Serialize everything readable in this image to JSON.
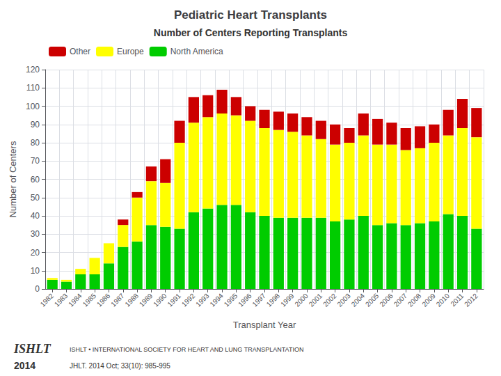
{
  "chart_data": {
    "type": "bar",
    "title": "Pediatric Heart Transplants",
    "subtitle": "Number of Centers Reporting Transplants",
    "xlabel": "Transplant Year",
    "ylabel": "Number of Centers",
    "categories": [
      "1982",
      "1983",
      "1984",
      "1985",
      "1986",
      "1987",
      "1988",
      "1989",
      "1990",
      "1991",
      "1992",
      "1993",
      "1994",
      "1995",
      "1996",
      "1997",
      "1998",
      "1999",
      "2000",
      "2001",
      "2002",
      "2003",
      "2004",
      "2005",
      "2006",
      "2007",
      "2008",
      "2009",
      "2010",
      "2011",
      "2012"
    ],
    "series": [
      {
        "name": "North America",
        "color": "#00cc00",
        "values": [
          5,
          4,
          8,
          8,
          14,
          23,
          26,
          35,
          34,
          33,
          42,
          44,
          46,
          46,
          42,
          40,
          39,
          39,
          39,
          39,
          37,
          38,
          40,
          35,
          36,
          35,
          36,
          37,
          41,
          40,
          33
        ]
      },
      {
        "name": "Europe",
        "color": "#ffff00",
        "values": [
          1,
          1,
          3,
          9,
          11,
          12,
          24,
          24,
          24,
          47,
          49,
          50,
          50,
          49,
          50,
          48,
          48,
          47,
          45,
          43,
          42,
          42,
          44,
          44,
          43,
          41,
          41,
          43,
          43,
          48,
          50
        ]
      },
      {
        "name": "Other",
        "color": "#cc0000",
        "values": [
          0,
          0,
          0,
          0,
          0,
          3,
          3,
          8,
          13,
          12,
          14,
          12,
          13,
          10,
          8,
          10,
          10,
          10,
          10,
          10,
          11,
          8,
          12,
          14,
          12,
          12,
          12,
          10,
          14,
          16,
          16
        ]
      }
    ],
    "stacked": true,
    "ylim": [
      0,
      120
    ],
    "yticks": [
      0,
      10,
      20,
      30,
      40,
      50,
      60,
      70,
      80,
      90,
      100,
      110,
      120
    ],
    "grid": true,
    "legend": "upper left",
    "annotations": [
      "ISHLT",
      "ISHLT • INTERNATIONAL SOCIETY FOR HEART AND LUNG TRANSPLANTATION",
      "2014",
      "JHLT. 2014 Oct; 33(10): 985-995"
    ]
  }
}
